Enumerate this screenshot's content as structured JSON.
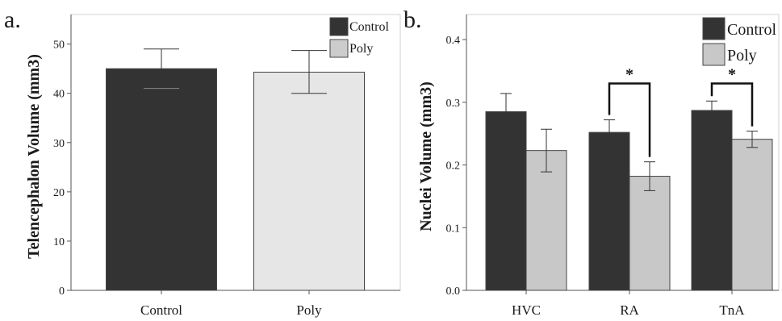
{
  "chart_data": [
    {
      "type": "bar",
      "panel_label": "a.",
      "categories": [
        "Control",
        "Poly"
      ],
      "values": [
        45.0,
        44.3
      ],
      "error_low": [
        41.0,
        40.0
      ],
      "error_high": [
        49.0,
        48.7
      ],
      "bar_colors": [
        "#333333",
        "#e6e6e6"
      ],
      "ylabel": "Telencephalon Volume (mm3)",
      "ylim": [
        0,
        56
      ],
      "yticks": [
        0,
        10,
        20,
        30,
        40,
        50
      ],
      "ytick_labels": [
        "0",
        "10",
        "20",
        "30",
        "40",
        "50"
      ],
      "grid": false,
      "legend": {
        "placement": "top-right",
        "entries": [
          {
            "label": "Control",
            "color": "#333333"
          },
          {
            "label": "Poly",
            "color": "#cccccc"
          }
        ]
      }
    },
    {
      "type": "bar",
      "panel_label": "b.",
      "categories": [
        "HVC",
        "RA",
        "TnA"
      ],
      "series": [
        {
          "name": "Control",
          "color": "#333333",
          "values": [
            0.285,
            0.252,
            0.287
          ],
          "error_low": [
            0.256,
            0.232,
            0.272
          ],
          "error_high": [
            0.314,
            0.272,
            0.302
          ]
        },
        {
          "name": "Poly",
          "color": "#c8c8c8",
          "values": [
            0.223,
            0.182,
            0.241
          ],
          "error_low": [
            0.189,
            0.159,
            0.228
          ],
          "error_high": [
            0.257,
            0.205,
            0.254
          ]
        }
      ],
      "ylabel": "Nuclei Volume (mm3)",
      "ylim": [
        0,
        0.44
      ],
      "yticks": [
        0.0,
        0.1,
        0.2,
        0.3,
        0.4
      ],
      "ytick_labels": [
        "0.0",
        "0.1",
        "0.2",
        "0.3",
        "0.4"
      ],
      "grid": false,
      "legend": {
        "placement": "top-right"
      },
      "annotations": [
        {
          "category": "RA",
          "text": "*",
          "bracket_y": 0.33
        },
        {
          "category": "TnA",
          "text": "*",
          "bracket_y": 0.33
        }
      ]
    }
  ]
}
